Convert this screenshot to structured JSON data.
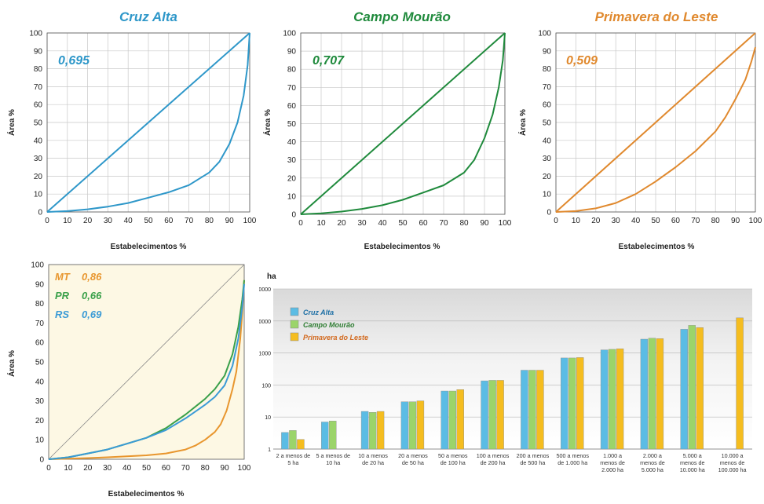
{
  "charts": {
    "cruz_alta": {
      "title": "Cruz Alta",
      "gini": "0,695",
      "color": "#2e97c9",
      "xlabel": "Estabelecimentos %",
      "ylabel": "Área %"
    },
    "campo_mourao": {
      "title": "Campo Mourão",
      "gini": "0,707",
      "color": "#1f8a3c",
      "xlabel": "Estabelecimentos %",
      "ylabel": "Área %"
    },
    "primavera": {
      "title": "Primavera do Leste",
      "gini": "0,509",
      "color": "#e0892e",
      "xlabel": "Estabelecimentos %",
      "ylabel": "Área %"
    },
    "combined": {
      "xlabel": "Estabelecimentos %",
      "ylabel": "Área %",
      "labels": [
        {
          "state": "MT",
          "value": "0,86",
          "color": "#e8962e"
        },
        {
          "state": "PR",
          "value": "0,66",
          "color": "#3aa04a"
        },
        {
          "state": "RS",
          "value": "0,69",
          "color": "#3b9bd6"
        }
      ]
    },
    "bar": {
      "unit": "ha"
    }
  },
  "chart_data": [
    {
      "type": "line",
      "title": "Cruz Alta",
      "xlabel": "Estabelecimentos %",
      "ylabel": "Área %",
      "annotation": "0,695",
      "xlim": [
        0,
        100
      ],
      "ylim": [
        0,
        100
      ],
      "x_ticks": [
        0,
        10,
        20,
        30,
        40,
        50,
        60,
        70,
        80,
        90,
        100
      ],
      "y_ticks": [
        0,
        10,
        20,
        30,
        40,
        50,
        60,
        70,
        80,
        90,
        100
      ],
      "grid": true,
      "series": [
        {
          "x": [
            0,
            100
          ],
          "y": [
            0,
            100
          ]
        },
        {
          "x": [
            0,
            10,
            20,
            30,
            40,
            50,
            60,
            70,
            80,
            85,
            90,
            94,
            97,
            99,
            100
          ],
          "y": [
            0,
            0.5,
            1.5,
            3,
            5,
            8,
            11,
            15,
            22,
            28,
            38,
            50,
            65,
            82,
            100
          ]
        }
      ]
    },
    {
      "type": "line",
      "title": "Campo Mourão",
      "xlabel": "Estabelecimentos %",
      "ylabel": "Área %",
      "annotation": "0,707",
      "xlim": [
        0,
        100
      ],
      "ylim": [
        0,
        100
      ],
      "x_ticks": [
        0,
        10,
        20,
        30,
        40,
        50,
        60,
        70,
        80,
        90,
        100
      ],
      "y_ticks": [
        0,
        10,
        20,
        30,
        40,
        50,
        60,
        70,
        80,
        90,
        100
      ],
      "grid": true,
      "series": [
        {
          "x": [
            0,
            100
          ],
          "y": [
            0,
            100
          ]
        },
        {
          "x": [
            0,
            10,
            20,
            30,
            40,
            50,
            60,
            70,
            80,
            85,
            90,
            94,
            97,
            99,
            100
          ],
          "y": [
            0,
            0.5,
            1.5,
            3,
            5,
            8,
            12,
            16,
            23,
            30,
            42,
            55,
            70,
            85,
            100
          ]
        }
      ]
    },
    {
      "type": "line",
      "title": "Primavera do Leste",
      "xlabel": "Estabelecimentos %",
      "ylabel": "Área %",
      "annotation": "0,509",
      "xlim": [
        0,
        100
      ],
      "ylim": [
        0,
        100
      ],
      "x_ticks": [
        0,
        10,
        20,
        30,
        40,
        50,
        60,
        70,
        80,
        90,
        100
      ],
      "y_ticks": [
        0,
        10,
        20,
        30,
        40,
        50,
        60,
        70,
        80,
        90,
        100
      ],
      "grid": true,
      "series": [
        {
          "x": [
            0,
            100
          ],
          "y": [
            0,
            100
          ]
        },
        {
          "x": [
            0,
            10,
            20,
            30,
            40,
            50,
            60,
            70,
            80,
            85,
            90,
            95,
            98,
            100
          ],
          "y": [
            0,
            0.5,
            2,
            5,
            10,
            17,
            25,
            34,
            45,
            53,
            63,
            74,
            84,
            92
          ]
        }
      ]
    },
    {
      "type": "line",
      "xlabel": "Estabelecimentos %",
      "ylabel": "Área %",
      "xlim": [
        0,
        100
      ],
      "ylim": [
        0,
        100
      ],
      "x_ticks": [
        0,
        10,
        20,
        30,
        40,
        50,
        60,
        70,
        80,
        90,
        100
      ],
      "y_ticks": [
        0,
        10,
        20,
        30,
        40,
        50,
        60,
        70,
        80,
        90,
        100
      ],
      "grid": false,
      "annotations": [
        "MT 0,86",
        "PR 0,66",
        "RS 0,69"
      ],
      "series": [
        {
          "x": [
            0,
            100
          ],
          "y": [
            0,
            100
          ]
        },
        {
          "x": [
            0,
            10,
            20,
            30,
            40,
            50,
            60,
            70,
            75,
            80,
            85,
            88,
            91,
            94,
            96,
            98,
            99,
            100
          ],
          "y": [
            0,
            0.3,
            0.6,
            1,
            1.5,
            2,
            3,
            5,
            7,
            10,
            14,
            18,
            25,
            36,
            45,
            62,
            75,
            92
          ]
        },
        {
          "x": [
            0,
            10,
            20,
            30,
            40,
            50,
            60,
            70,
            80,
            85,
            90,
            94,
            97,
            99,
            100
          ],
          "y": [
            0,
            1,
            3,
            5,
            8,
            11,
            16,
            23,
            31,
            36,
            43,
            54,
            68,
            82,
            92
          ]
        },
        {
          "x": [
            0,
            10,
            20,
            30,
            40,
            50,
            60,
            70,
            80,
            85,
            90,
            94,
            97,
            99,
            100
          ],
          "y": [
            0,
            1,
            3,
            5,
            8,
            11,
            15,
            21,
            28,
            32,
            38,
            48,
            62,
            78,
            90
          ]
        }
      ]
    },
    {
      "type": "bar",
      "ylabel": "ha",
      "y_scale": "log",
      "ylim": [
        1,
        100000
      ],
      "y_ticks": [
        1,
        10,
        100,
        1000,
        10000,
        100000
      ],
      "grid": true,
      "legend_position": "top-left",
      "categories": [
        "2 a menos de 5 ha",
        "5 a menos de 10 ha",
        "10 a menos de 20 ha",
        "20 a menos de 50 ha",
        "50 a menos de 100 ha",
        "100 a menos de 200 ha",
        "200 a menos de 500 ha",
        "500 a menos de 1.000 ha",
        "1.000 a menos de 2.000 ha",
        "2.000 a menos de 5.000 ha",
        "5.000 a menos de 10.000 ha",
        "10.000 a menos de 100.000 ha"
      ],
      "category_lines": [
        [
          "2 a menos de",
          "5 ha"
        ],
        [
          "5 a menos de",
          "10 ha"
        ],
        [
          "10 a menos",
          "de 20 ha"
        ],
        [
          "20 a menos",
          "de 50 ha"
        ],
        [
          "50 a menos",
          "de 100 ha"
        ],
        [
          "100 a menos",
          "de 200 ha"
        ],
        [
          "200 a menos",
          "de 500 ha"
        ],
        [
          "500 a menos",
          "de 1.000 ha"
        ],
        [
          "1.000 a",
          "menos de",
          "2.000 ha"
        ],
        [
          "2.000 a",
          "menos de",
          "5.000 ha"
        ],
        [
          "5.000 a",
          "menos de",
          "10.000 ha"
        ],
        [
          "10.000 a",
          "menos de",
          "100.000 ha"
        ]
      ],
      "series": [
        {
          "name": "Cruz Alta",
          "color": "#5bbce4",
          "values": [
            3.3,
            7,
            15,
            30,
            65,
            135,
            290,
            700,
            1250,
            2700,
            5500,
            null
          ]
        },
        {
          "name": "Campo Mourão",
          "color": "#9bd46a",
          "values": [
            3.8,
            7.5,
            14,
            30,
            65,
            140,
            290,
            700,
            1300,
            2900,
            7300,
            null
          ]
        },
        {
          "name": "Primavera do Leste",
          "color": "#f5bd1f",
          "values": [
            2,
            null,
            15,
            32,
            72,
            140,
            290,
            720,
            1350,
            2800,
            6200,
            12500
          ]
        }
      ]
    }
  ]
}
